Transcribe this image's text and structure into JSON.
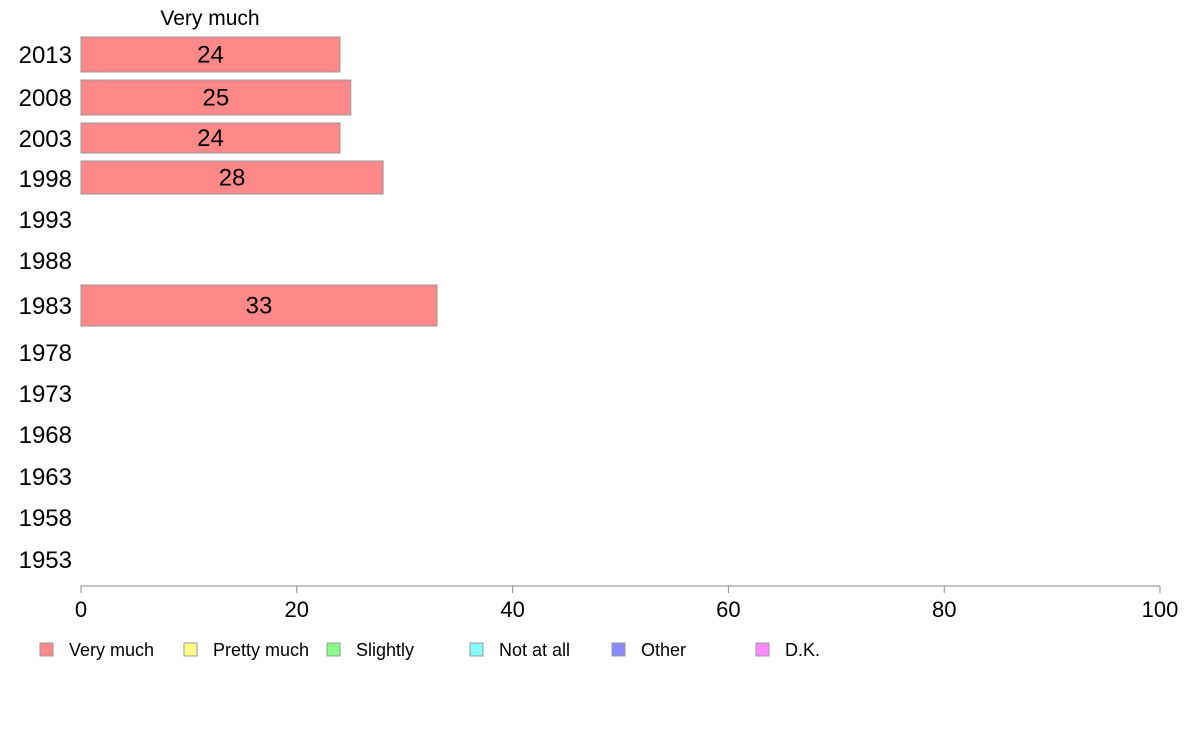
{
  "chart_data": {
    "type": "bar",
    "orientation": "horizontal",
    "series_header": "Very much",
    "categories": [
      "2013",
      "2008",
      "2003",
      "1998",
      "1993",
      "1988",
      "1983",
      "1978",
      "1973",
      "1968",
      "1963",
      "1958",
      "1953"
    ],
    "series": [
      {
        "name": "Very much",
        "values": [
          24,
          25,
          24,
          28,
          null,
          null,
          33,
          null,
          null,
          null,
          null,
          null,
          null
        ]
      }
    ],
    "xlim": [
      0,
      100
    ],
    "xticks": [
      0,
      20,
      40,
      60,
      80,
      100
    ],
    "legend": {
      "placement": "bottom",
      "items": [
        {
          "label": "Very much",
          "color": "#ff8888"
        },
        {
          "label": "Pretty much",
          "color": "#ffff88"
        },
        {
          "label": "Slightly",
          "color": "#88ff88"
        },
        {
          "label": "Not at all",
          "color": "#88ffff"
        },
        {
          "label": "Other",
          "color": "#8888ff"
        },
        {
          "label": "D.K.",
          "color": "#ff88ff"
        }
      ]
    },
    "colors": {
      "bar": "#ff8888",
      "bar_stroke": "#999999",
      "axis": "#888888"
    }
  }
}
